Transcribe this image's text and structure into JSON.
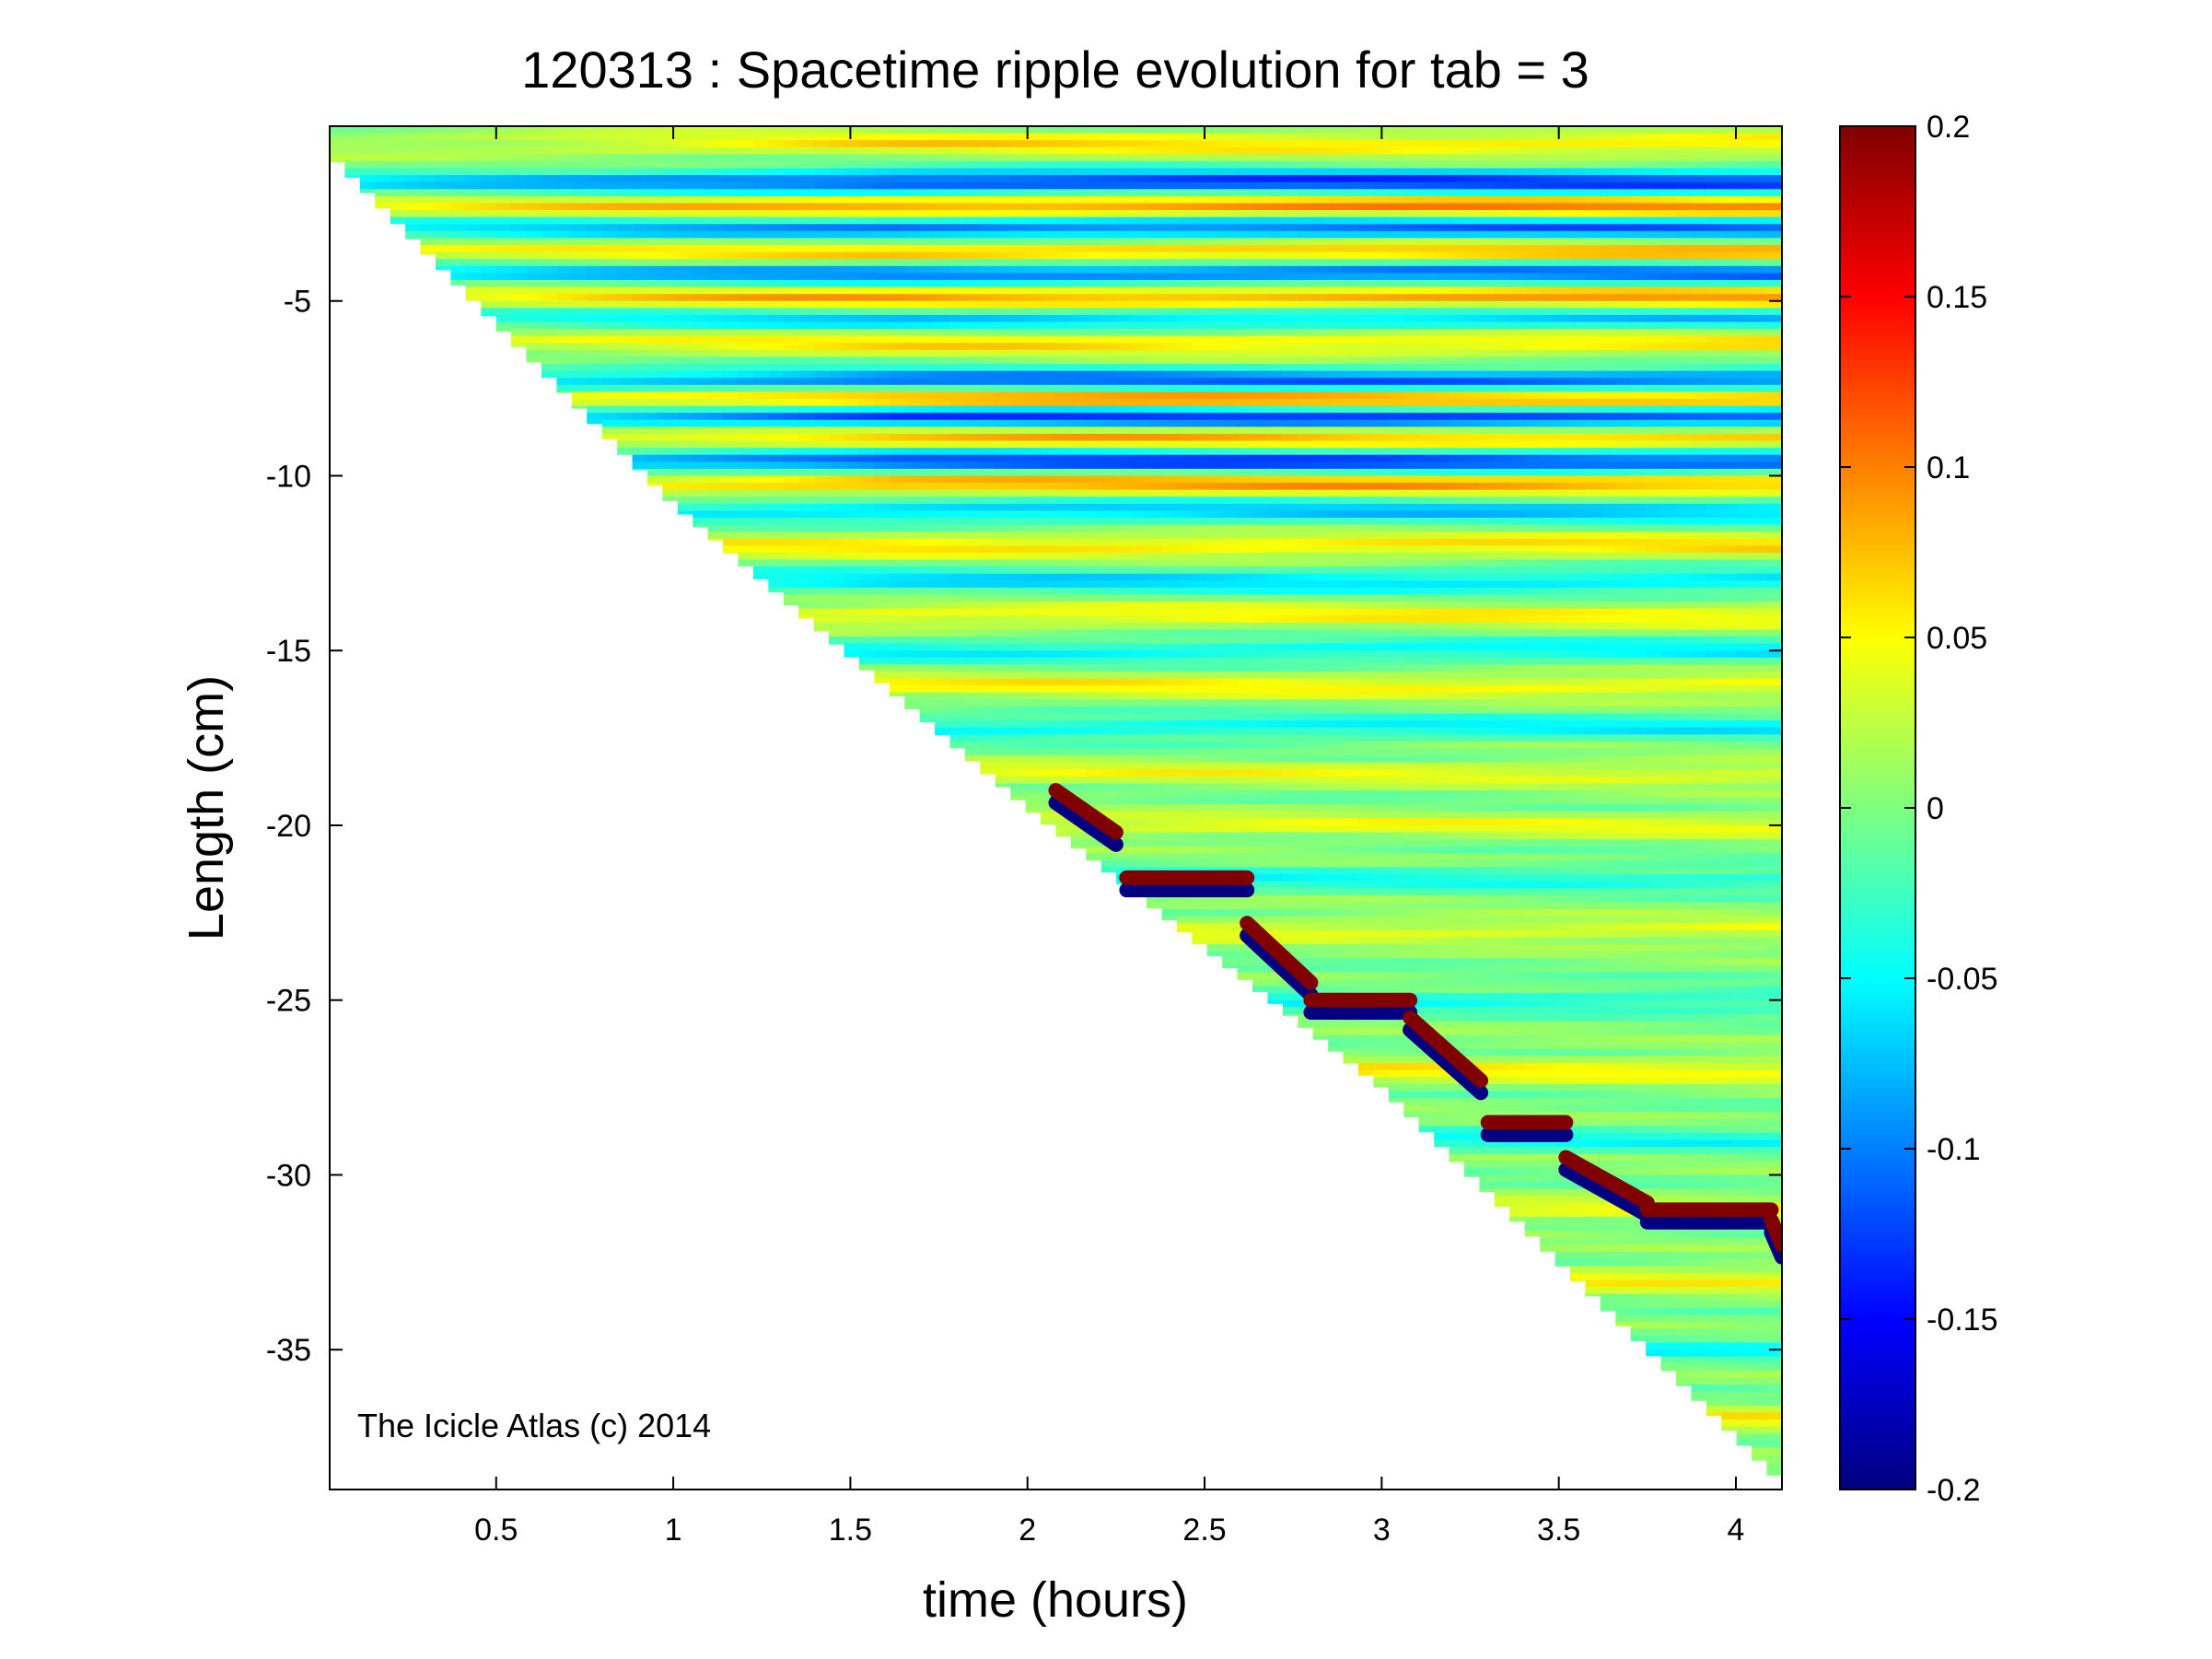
{
  "chart_data": {
    "type": "heatmap",
    "title": "120313 : Spacetime ripple evolution for tab = 3",
    "xlabel": "time (hours)",
    "ylabel": "Length (cm)",
    "xlim": [
      0.03,
      4.13
    ],
    "ylim": [
      -39,
      0
    ],
    "x_ticks": [
      0.5,
      1,
      1.5,
      2,
      2.5,
      3,
      3.5,
      4
    ],
    "x_tick_labels": [
      "0.5",
      "1",
      "1.5",
      "2",
      "2.5",
      "3",
      "3.5",
      "4"
    ],
    "y_ticks": [
      -5,
      -10,
      -15,
      -20,
      -25,
      -30,
      -35
    ],
    "y_tick_labels": [
      "-5",
      "-10",
      "-15",
      "-20",
      "-25",
      "-30",
      "-35"
    ],
    "colorbar": {
      "min": -0.2,
      "max": 0.2,
      "colormap": "jet",
      "ticks": [
        0.2,
        0.15,
        0.1,
        0.05,
        0,
        -0.05,
        -0.1,
        -0.15,
        -0.2
      ],
      "tick_labels": [
        "0.2",
        "0.15",
        "0.1",
        "0.05",
        "0",
        "-0.05",
        "-0.1",
        "-0.15",
        "-0.2"
      ]
    },
    "annotation": "The Icicle Atlas (c) 2014",
    "tip_position": [
      {
        "t": 0.03,
        "length": -0.8
      },
      {
        "t": 1.0,
        "length": -10.8
      },
      {
        "t": 2.0,
        "length": -19.5
      },
      {
        "t": 3.0,
        "length": -27.5
      },
      {
        "t": 4.13,
        "length": -38.8
      }
    ],
    "tip_ripple_track": [
      {
        "t_start": 2.08,
        "t_end": 2.25,
        "length_start": -19.0,
        "length_end": -20.2
      },
      {
        "t_start": 2.28,
        "t_end": 2.62,
        "length_start": -21.5,
        "length_end": -21.5
      },
      {
        "t_start": 2.62,
        "t_end": 2.8,
        "length_start": -22.8,
        "length_end": -24.5
      },
      {
        "t_start": 2.8,
        "t_end": 3.08,
        "length_start": -25.0,
        "length_end": -25.0
      },
      {
        "t_start": 3.08,
        "t_end": 3.28,
        "length_start": -25.5,
        "length_end": -27.3
      },
      {
        "t_start": 3.3,
        "t_end": 3.52,
        "length_start": -28.5,
        "length_end": -28.5
      },
      {
        "t_start": 3.52,
        "t_end": 3.75,
        "length_start": -29.5,
        "length_end": -30.8
      },
      {
        "t_start": 3.75,
        "t_end": 4.1,
        "length_start": -31.0,
        "length_end": -31.0
      },
      {
        "t_start": 4.1,
        "t_end": 4.13,
        "length_start": -31.3,
        "length_end": -32.0
      }
    ],
    "ripple_bands": [
      {
        "length": -0.5,
        "amplitude": 0.06
      },
      {
        "length": -1.6,
        "amplitude": -0.13
      },
      {
        "length": -2.3,
        "amplitude": 0.1
      },
      {
        "length": -2.9,
        "amplitude": -0.11
      },
      {
        "length": -3.6,
        "amplitude": 0.08
      },
      {
        "length": -4.2,
        "amplitude": -0.11
      },
      {
        "length": -4.9,
        "amplitude": 0.09
      },
      {
        "length": -5.5,
        "amplitude": -0.07
      },
      {
        "length": -6.2,
        "amplitude": 0.06
      },
      {
        "length": -7.3,
        "amplitude": -0.12
      },
      {
        "length": -7.8,
        "amplitude": 0.12
      },
      {
        "length": -8.3,
        "amplitude": -0.14
      },
      {
        "length": -8.9,
        "amplitude": 0.08
      },
      {
        "length": -9.6,
        "amplitude": -0.13
      },
      {
        "length": -10.2,
        "amplitude": 0.09
      },
      {
        "length": -11.0,
        "amplitude": -0.07
      },
      {
        "length": -12.0,
        "amplitude": 0.06
      },
      {
        "length": -13.0,
        "amplitude": -0.06
      },
      {
        "length": -14.0,
        "amplitude": 0.05
      },
      {
        "length": -15.0,
        "amplitude": -0.05
      },
      {
        "length": -16.0,
        "amplitude": 0.05
      },
      {
        "length": -17.2,
        "amplitude": -0.05
      },
      {
        "length": -18.5,
        "amplitude": 0.04
      },
      {
        "length": -20.0,
        "amplitude": 0.04
      },
      {
        "length": -21.5,
        "amplitude": -0.04
      },
      {
        "length": -23.0,
        "amplitude": 0.04
      },
      {
        "length": -25.0,
        "amplitude": -0.04
      },
      {
        "length": -27.0,
        "amplitude": 0.05
      },
      {
        "length": -29.0,
        "amplitude": -0.04
      },
      {
        "length": -31.0,
        "amplitude": 0.04
      },
      {
        "length": -33.0,
        "amplitude": 0.05
      },
      {
        "length": -35.0,
        "amplitude": -0.04
      },
      {
        "length": -37.0,
        "amplitude": 0.05
      }
    ]
  }
}
